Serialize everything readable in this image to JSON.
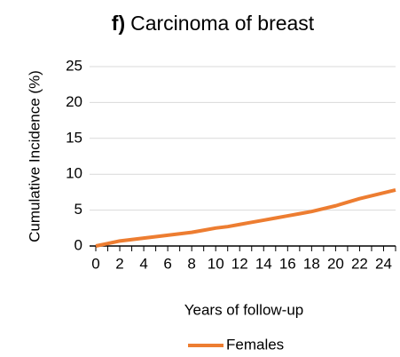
{
  "chart_data": {
    "type": "line",
    "title_label": "f)",
    "title": "Carcinoma of breast",
    "y_label": "Cumulative Incidence (%)",
    "x_label": "Years of follow-up",
    "x": [
      0,
      1,
      2,
      3,
      4,
      5,
      6,
      7,
      8,
      9,
      10,
      11,
      12,
      13,
      14,
      15,
      16,
      17,
      18,
      19,
      20,
      21,
      22,
      23,
      24,
      25
    ],
    "series": [
      {
        "name": "Females",
        "color": "#ed7d31",
        "values": [
          0,
          0.35,
          0.7,
          0.9,
          1.1,
          1.3,
          1.5,
          1.7,
          1.9,
          2.2,
          2.5,
          2.7,
          3.0,
          3.3,
          3.6,
          3.9,
          4.2,
          4.5,
          4.8,
          5.2,
          5.6,
          6.1,
          6.6,
          7.0,
          7.4,
          7.8
        ]
      }
    ],
    "xlim": [
      0,
      25
    ],
    "xticks": [
      0,
      2,
      4,
      6,
      8,
      10,
      12,
      14,
      16,
      18,
      20,
      22,
      24
    ],
    "xminor_ticks": [
      0,
      1,
      2,
      3,
      4,
      5,
      6,
      7,
      8,
      9,
      10,
      11,
      12,
      13,
      14,
      15,
      16,
      17,
      18,
      19,
      20,
      21,
      22,
      23,
      24,
      25
    ],
    "ylim": [
      0,
      25
    ],
    "yticks": [
      0,
      5,
      10,
      15,
      20,
      25
    ],
    "grid": true
  }
}
